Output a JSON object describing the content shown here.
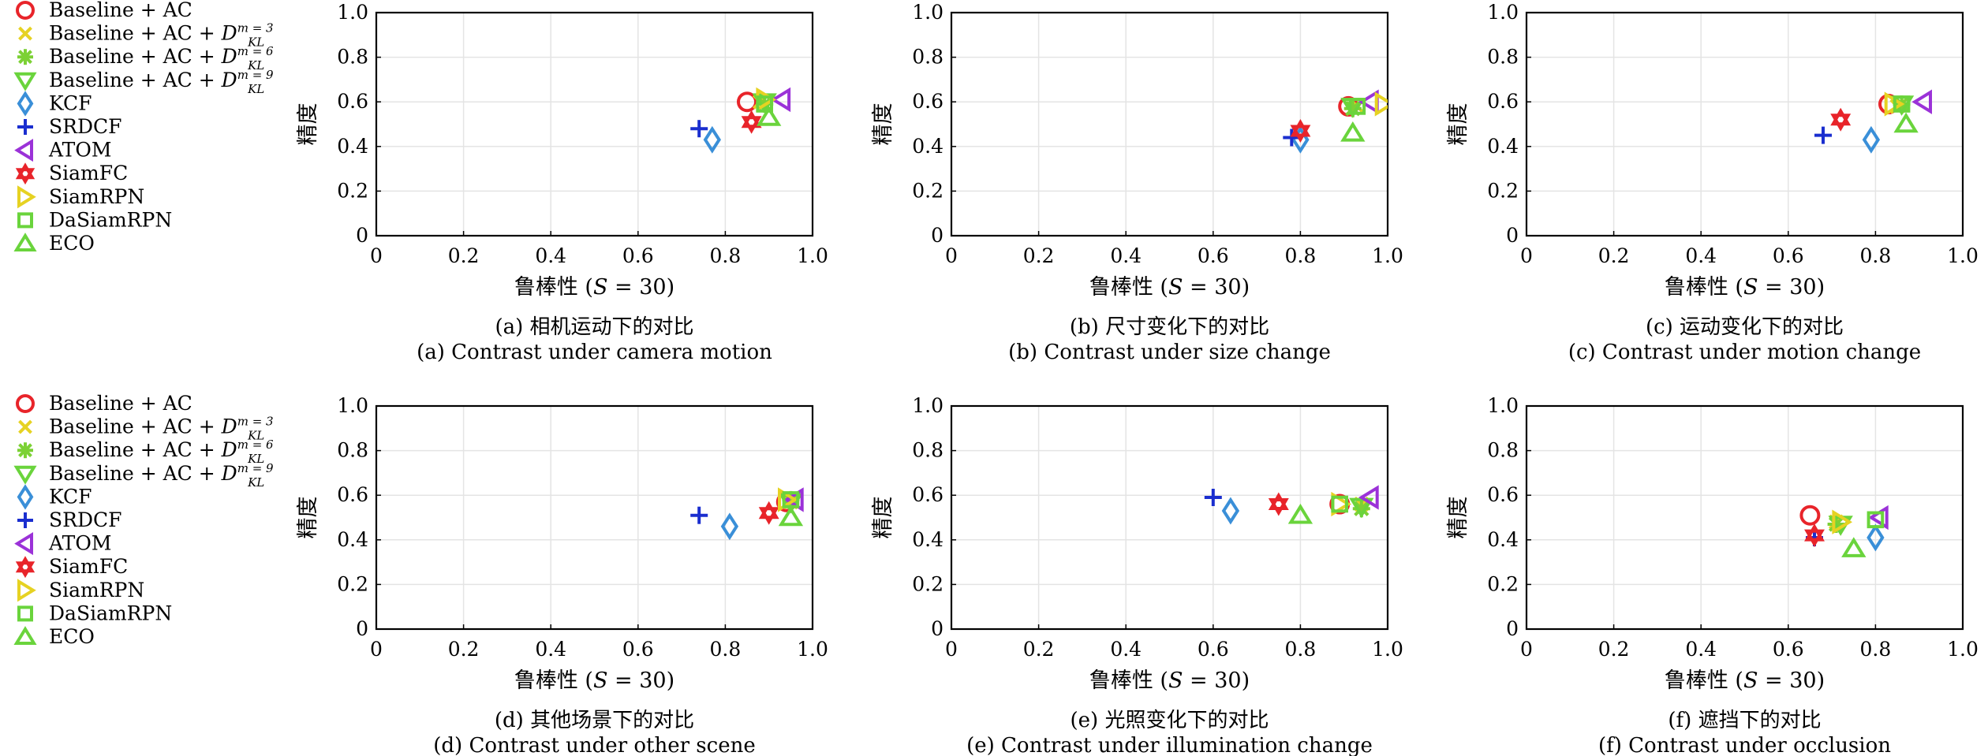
{
  "figure": {
    "ylabel": "精度",
    "xlabel_prefix": "鲁棒性 (",
    "xlabel_var": "S",
    "xlabel_suffix": " = 30)",
    "xticks": [
      "0",
      "0.2",
      "0.4",
      "0.6",
      "0.8",
      "1.0"
    ],
    "yticks": [
      "0",
      "0.2",
      "0.4",
      "0.6",
      "0.8",
      "1.0"
    ]
  },
  "legend": [
    {
      "key": "baseline_ac",
      "label": "Baseline + AC",
      "marker": "circle",
      "color": "#e8242a"
    },
    {
      "key": "baseline_ac_m3",
      "label": "Baseline + AC + ",
      "math": "D",
      "sub": "KL",
      "sup": "m = 3",
      "marker": "x",
      "color": "#e6d222"
    },
    {
      "key": "baseline_ac_m6",
      "label": "Baseline + AC + ",
      "math": "D",
      "sub": "KL",
      "sup": "m = 6",
      "marker": "asterisk",
      "color": "#7cd135"
    },
    {
      "key": "baseline_ac_m9",
      "label": "Baseline + AC + ",
      "math": "D",
      "sub": "KL",
      "sup": "m = 9",
      "marker": "triangle-down",
      "color": "#6ad43c"
    },
    {
      "key": "kcf",
      "label": "KCF",
      "marker": "diamond",
      "color": "#3a8fd8"
    },
    {
      "key": "srdcf",
      "label": "SRDCF",
      "marker": "plus",
      "color": "#1a2ecf"
    },
    {
      "key": "atom",
      "label": "ATOM",
      "marker": "triangle-left",
      "color": "#9b32d8"
    },
    {
      "key": "siamfc",
      "label": "SiamFC",
      "marker": "hexagram",
      "color": "#e8242a"
    },
    {
      "key": "siamrpn",
      "label": "SiamRPN",
      "marker": "triangle-right",
      "color": "#e6d222"
    },
    {
      "key": "dasiamrpn",
      "label": "DaSiamRPN",
      "marker": "square",
      "color": "#6ad43c"
    },
    {
      "key": "eco",
      "label": "ECO",
      "marker": "triangle-up",
      "color": "#6ad43c"
    }
  ],
  "chart_data": [
    {
      "type": "scatter",
      "id": "a",
      "caption_cn": "(a) 相机运动下的对比",
      "caption_en": "(a) Contrast under camera motion",
      "xlim": [
        0,
        1.0
      ],
      "ylim": [
        0,
        1.0
      ],
      "grid": true,
      "points": {
        "baseline_ac": [
          0.85,
          0.6
        ],
        "baseline_ac_m3": [
          0.88,
          0.6
        ],
        "baseline_ac_m6": [
          0.89,
          0.59
        ],
        "baseline_ac_m9": [
          0.89,
          0.6
        ],
        "kcf": [
          0.77,
          0.43
        ],
        "srdcf": [
          0.74,
          0.48
        ],
        "atom": [
          0.93,
          0.61
        ],
        "siamfc": [
          0.86,
          0.51
        ],
        "siamrpn": [
          0.89,
          0.61
        ],
        "dasiamrpn": [
          0.89,
          0.59
        ],
        "eco": [
          0.9,
          0.53
        ]
      }
    },
    {
      "type": "scatter",
      "id": "b",
      "caption_cn": "(b) 尺寸变化下的对比",
      "caption_en": "(b) Contrast under size change",
      "xlim": [
        0,
        1.0
      ],
      "ylim": [
        0,
        1.0
      ],
      "grid": true,
      "points": {
        "baseline_ac": [
          0.91,
          0.58
        ],
        "baseline_ac_m3": [
          0.93,
          0.58
        ],
        "baseline_ac_m6": [
          0.92,
          0.57
        ],
        "baseline_ac_m9": [
          0.92,
          0.58
        ],
        "kcf": [
          0.8,
          0.43
        ],
        "srdcf": [
          0.78,
          0.44
        ],
        "atom": [
          0.96,
          0.6
        ],
        "siamfc": [
          0.8,
          0.47
        ],
        "siamrpn": [
          0.99,
          0.59
        ],
        "dasiamrpn": [
          0.93,
          0.58
        ],
        "eco": [
          0.92,
          0.46
        ]
      }
    },
    {
      "type": "scatter",
      "id": "c",
      "caption_cn": "(c) 运动变化下的对比",
      "caption_en": "(c) Contrast under motion change",
      "xlim": [
        0,
        1.0
      ],
      "ylim": [
        0,
        1.0
      ],
      "grid": true,
      "points": {
        "baseline_ac": [
          0.83,
          0.59
        ],
        "baseline_ac_m3": [
          0.85,
          0.58
        ],
        "baseline_ac_m6": [
          0.86,
          0.59
        ],
        "baseline_ac_m9": [
          0.86,
          0.59
        ],
        "kcf": [
          0.79,
          0.43
        ],
        "srdcf": [
          0.68,
          0.45
        ],
        "atom": [
          0.91,
          0.6
        ],
        "siamfc": [
          0.72,
          0.52
        ],
        "siamrpn": [
          0.84,
          0.59
        ],
        "dasiamrpn": [
          0.86,
          0.59
        ],
        "eco": [
          0.87,
          0.5
        ]
      }
    },
    {
      "type": "scatter",
      "id": "d",
      "caption_cn": "(d) 其他场景下的对比",
      "caption_en": "(d) Contrast under other scene",
      "xlim": [
        0,
        1.0
      ],
      "ylim": [
        0,
        1.0
      ],
      "grid": true,
      "points": {
        "baseline_ac": [
          0.94,
          0.57
        ],
        "baseline_ac_m3": [
          0.95,
          0.57
        ],
        "baseline_ac_m6": [
          0.95,
          0.58
        ],
        "baseline_ac_m9": [
          0.95,
          0.57
        ],
        "kcf": [
          0.81,
          0.46
        ],
        "srdcf": [
          0.74,
          0.51
        ],
        "atom": [
          0.96,
          0.58
        ],
        "siamfc": [
          0.9,
          0.52
        ],
        "siamrpn": [
          0.94,
          0.58
        ],
        "dasiamrpn": [
          0.95,
          0.58
        ],
        "eco": [
          0.95,
          0.5
        ]
      }
    },
    {
      "type": "scatter",
      "id": "e",
      "caption_cn": "(e) 光照变化下的对比",
      "caption_en": "(e) Contrast under illumination change",
      "xlim": [
        0,
        1.0
      ],
      "ylim": [
        0,
        1.0
      ],
      "grid": true,
      "points": {
        "baseline_ac": [
          0.89,
          0.56
        ],
        "baseline_ac_m3": [
          0.94,
          0.56
        ],
        "baseline_ac_m6": [
          0.94,
          0.54
        ],
        "baseline_ac_m9": [
          0.94,
          0.55
        ],
        "kcf": [
          0.64,
          0.53
        ],
        "srdcf": [
          0.6,
          0.59
        ],
        "atom": [
          0.96,
          0.59
        ],
        "siamfc": [
          0.75,
          0.56
        ],
        "siamrpn": [
          0.89,
          0.56
        ],
        "dasiamrpn": [
          0.89,
          0.56
        ],
        "eco": [
          0.8,
          0.51
        ]
      }
    },
    {
      "type": "scatter",
      "id": "f",
      "caption_cn": "(f) 遮挡下的对比",
      "caption_en": "(f)  Contrast under occlusion",
      "xlim": [
        0,
        1.0
      ],
      "ylim": [
        0,
        1.0
      ],
      "grid": true,
      "points": {
        "baseline_ac": [
          0.65,
          0.51
        ],
        "baseline_ac_m3": [
          0.71,
          0.48
        ],
        "baseline_ac_m6": [
          0.71,
          0.47
        ],
        "baseline_ac_m9": [
          0.72,
          0.47
        ],
        "kcf": [
          0.8,
          0.41
        ],
        "srdcf": [
          0.66,
          0.41
        ],
        "atom": [
          0.81,
          0.5
        ],
        "siamfc": [
          0.66,
          0.42
        ],
        "siamrpn": [
          0.72,
          0.48
        ],
        "dasiamrpn": [
          0.8,
          0.49
        ],
        "eco": [
          0.75,
          0.36
        ]
      }
    }
  ]
}
